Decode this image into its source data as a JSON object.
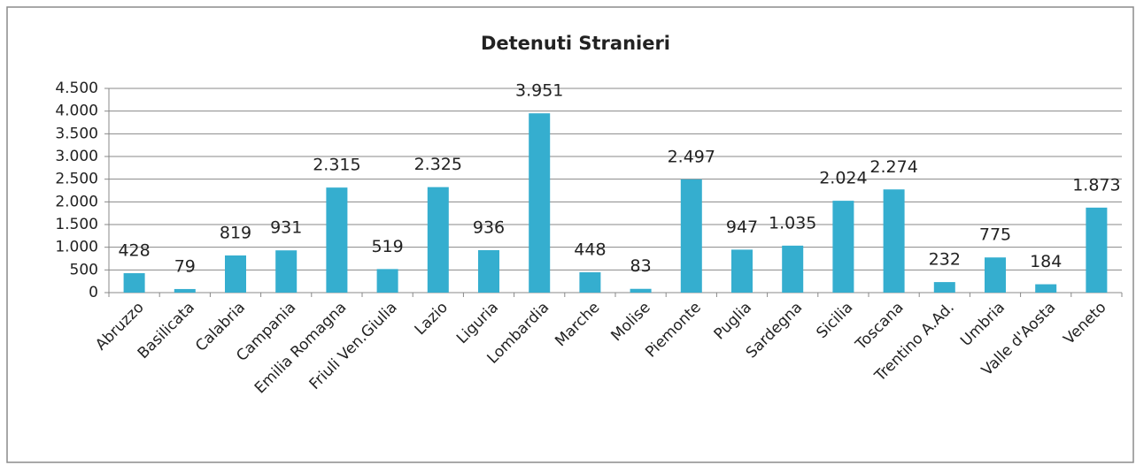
{
  "chart_data": {
    "type": "bar",
    "title": "Detenuti Stranieri",
    "categories": [
      "Abruzzo",
      "Basilicata",
      "Calabria",
      "Campania",
      "Emilia Romagna",
      "Friuli Ven.Giulia",
      "Lazio",
      "Liguria",
      "Lombardia",
      "Marche",
      "Molise",
      "Piemonte",
      "Puglia",
      "Sardegna",
      "Sicilia",
      "Toscana",
      "Trentino A.Ad.",
      "Umbria",
      "Valle d'Aosta",
      "Veneto"
    ],
    "values": [
      428,
      79,
      819,
      931,
      2315,
      519,
      2325,
      936,
      3951,
      448,
      83,
      2497,
      947,
      1035,
      2024,
      2274,
      232,
      775,
      184,
      1873
    ],
    "value_labels": [
      "428",
      "79",
      "819",
      "931",
      "2.315",
      "519",
      "2.325",
      "936",
      "3.951",
      "448",
      "83",
      "2.497",
      "947",
      "1.035",
      "2.024",
      "2.274",
      "232",
      "775",
      "184",
      "1.873"
    ],
    "color": "#35aecf",
    "ylim": [
      0,
      4500
    ],
    "yticks": [
      0,
      500,
      {
        "value": 1000,
        "label": "1.000"
      },
      {
        "value": 1500,
        "label": "1.500"
      },
      {
        "value": 2000,
        "label": "2.000"
      },
      {
        "value": 2500,
        "label": "2.500"
      },
      {
        "value": 3000,
        "label": "3.000"
      },
      {
        "value": 3500,
        "label": "3.500"
      },
      {
        "value": 4000,
        "label": "4.000"
      },
      {
        "value": 4500,
        "label": "4.500"
      }
    ],
    "grid": true
  }
}
